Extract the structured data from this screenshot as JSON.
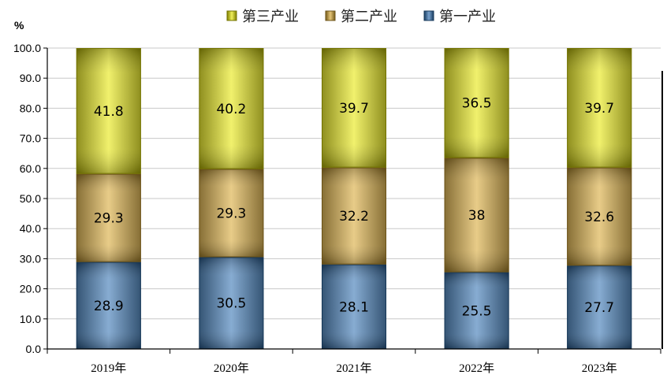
{
  "chart_data": {
    "type": "bar",
    "stacked": true,
    "categories": [
      "2019年",
      "2020年",
      "2021年",
      "2022年",
      "2023年"
    ],
    "series": [
      {
        "name": "第一产业",
        "values": [
          28.9,
          30.5,
          28.1,
          25.5,
          27.7
        ],
        "color": "#2e6fb0"
      },
      {
        "name": "第二产业",
        "values": [
          29.3,
          29.3,
          32.2,
          38,
          32.6
        ],
        "color": "#d7a52f"
      },
      {
        "name": "第三产业",
        "values": [
          41.8,
          40.2,
          39.7,
          36.5,
          39.7
        ],
        "color": "#e6e600"
      }
    ],
    "legend_order": [
      "第三产业",
      "第二产业",
      "第一产业"
    ],
    "legend_position": "top",
    "ylabel": "%",
    "ylim": [
      0,
      100
    ],
    "yticks": [
      "0.0",
      "10.0",
      "20.0",
      "30.0",
      "40.0",
      "50.0",
      "60.0",
      "70.0",
      "80.0",
      "90.0",
      "100.0"
    ],
    "grid": true
  }
}
